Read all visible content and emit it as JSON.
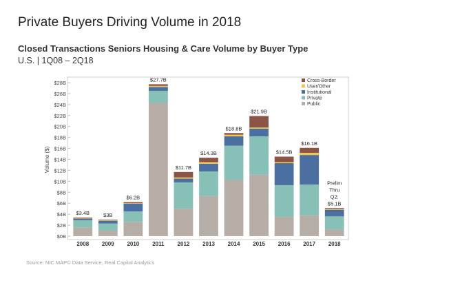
{
  "chart_data": {
    "type": "stacked_bar",
    "title": "Private Buyers Driving Volume in 2018",
    "subtitle": "Closed Transactions Seniors Housing & Care Volume by Buyer Type",
    "subtitle2": "U.S. | 1Q08 – 2Q18",
    "y_label": "Volume ($)",
    "source": "Source:  NIC MAP© Data Service,  Real Capital Analytics",
    "categories": [
      "2008",
      "2009",
      "2010",
      "2011",
      "2012",
      "2013",
      "2014",
      "2015",
      "2016",
      "2017",
      "2018"
    ],
    "series": [
      {
        "name": "Public",
        "color": "#b7ada7",
        "values": [
          1.6,
          1.0,
          2.6,
          24.3,
          5.0,
          7.3,
          10.3,
          11.2,
          3.5,
          3.8,
          1.2
        ]
      },
      {
        "name": "Private",
        "color": "#87c0b6",
        "values": [
          1.3,
          1.3,
          1.9,
          2.2,
          4.8,
          4.5,
          6.2,
          7.0,
          5.8,
          5.6,
          2.4
        ]
      },
      {
        "name": "Institutional",
        "color": "#4a6fa0",
        "values": [
          0.3,
          0.5,
          1.4,
          0.7,
          0.7,
          1.4,
          1.7,
          1.4,
          4.0,
          5.4,
          1.2
        ]
      },
      {
        "name": "User/Other",
        "color": "#f0c64d",
        "values": [
          0.1,
          0.1,
          0.1,
          0.2,
          0.2,
          0.3,
          0.3,
          0.2,
          0.2,
          0.4,
          0.1
        ]
      },
      {
        "name": "Cross-Border",
        "color": "#8b5446",
        "values": [
          0.1,
          0.1,
          0.2,
          0.3,
          1.0,
          0.8,
          0.3,
          2.1,
          1.0,
          0.9,
          0.2
        ]
      }
    ],
    "totals": [
      3.4,
      3,
      6.2,
      27.7,
      11.7,
      14.3,
      18.8,
      21.9,
      14.5,
      16.1,
      5.1
    ],
    "total_labels": [
      [
        "$3.4B"
      ],
      [
        "$3B"
      ],
      [
        "$6.2B"
      ],
      [
        "$27.7B"
      ],
      [
        "$11.7B"
      ],
      [
        "$14.3B"
      ],
      [
        "$18.8B"
      ],
      [
        "$21.9B"
      ],
      [
        "$14.5B"
      ],
      [
        "$16.1B"
      ],
      [
        "Prelim",
        "Thru",
        "Q2:",
        "$5.1B"
      ]
    ],
    "ylim": [
      0,
      28
    ],
    "yticks": [
      {
        "value": 0,
        "label": "$0B"
      },
      {
        "value": 2,
        "label": "$2B"
      },
      {
        "value": 4,
        "label": "$4B"
      },
      {
        "value": 6,
        "label": "$6B"
      },
      {
        "value": 8,
        "label": "$8B"
      },
      {
        "value": 10,
        "label": "$10B"
      },
      {
        "value": 12,
        "label": "$12B"
      },
      {
        "value": 14,
        "label": "$14B"
      },
      {
        "value": 16,
        "label": "$16B"
      },
      {
        "value": 18,
        "label": "$18B"
      },
      {
        "value": 20,
        "label": "$20B"
      },
      {
        "value": 22,
        "label": "$22B"
      },
      {
        "value": 24,
        "label": "$24B"
      },
      {
        "value": 26,
        "label": "$26B"
      },
      {
        "value": 28,
        "label": "$28B"
      }
    ],
    "legend": "top-right"
  }
}
